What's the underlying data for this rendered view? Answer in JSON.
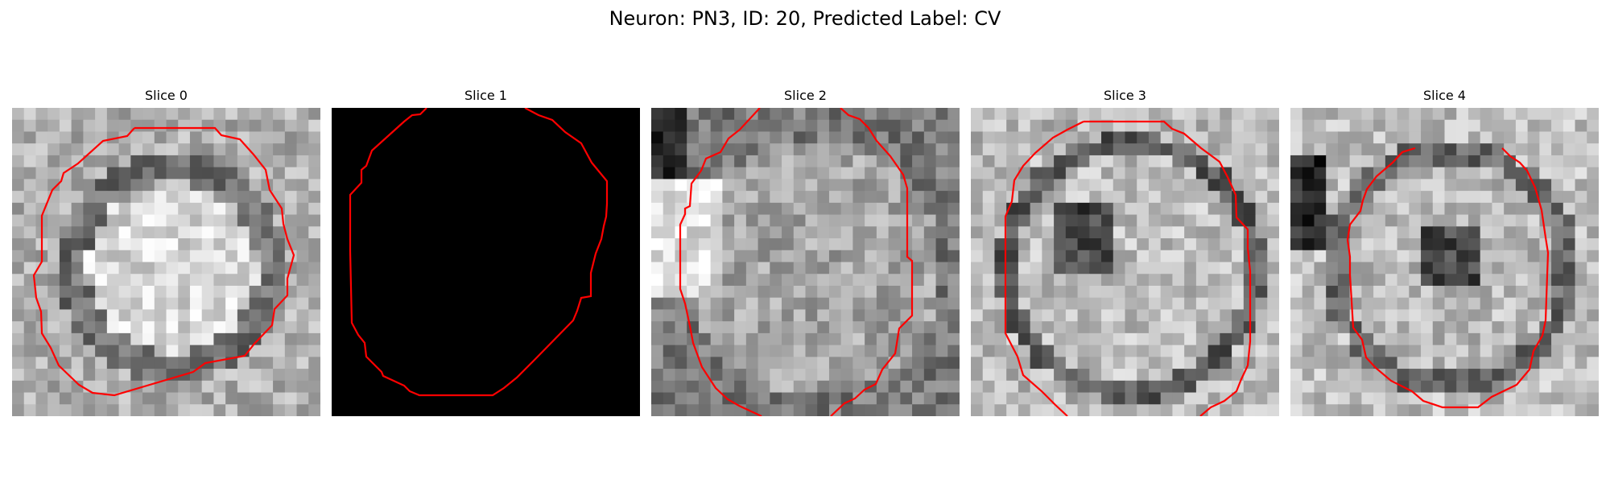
{
  "figure": {
    "title": "Neuron: PN3, ID: 20, Predicted Label: CV"
  },
  "panels": [
    {
      "title": "Slice 0"
    },
    {
      "title": "Slice 1"
    },
    {
      "title": "Slice 2"
    },
    {
      "title": "Slice 3"
    },
    {
      "title": "Slice 4"
    }
  ],
  "colors": {
    "background": "#ffffff",
    "contour": "#ff0000",
    "image_dark": "#000000",
    "image_light": "#ffffff"
  }
}
